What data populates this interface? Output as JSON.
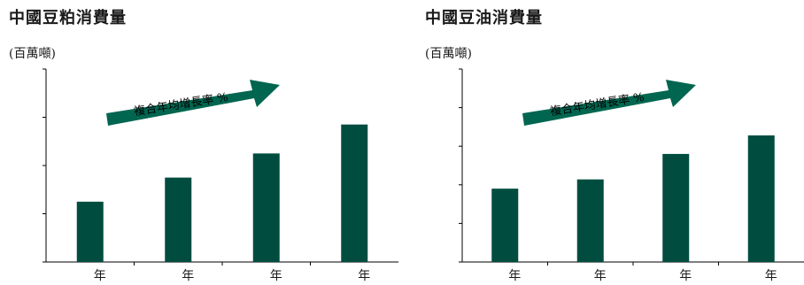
{
  "chart_data": [
    {
      "type": "bar",
      "title": "中國豆粕消費量",
      "unit_label": "(百萬噸)",
      "categories": [
        "年",
        "年",
        "年",
        "年"
      ],
      "values": [
        12.5,
        17.5,
        22.5,
        28.5
      ],
      "ylim": [
        0,
        40
      ],
      "y_ticks": [
        0,
        10,
        20,
        30,
        40
      ],
      "annotation": "複合年均增長率 %",
      "bar_color": "#004d40",
      "arrow_color": "#006650",
      "grid": false,
      "legend": "none"
    },
    {
      "type": "bar",
      "title": "中國豆油消費量",
      "unit_label": "(百萬噸)",
      "categories": [
        "年",
        "年",
        "年",
        "年"
      ],
      "values": [
        9.5,
        10.7,
        14.0,
        16.4
      ],
      "ylim": [
        0,
        25
      ],
      "y_ticks": [
        0,
        5,
        10,
        15,
        20,
        25
      ],
      "annotation": "複合年均增長率 %",
      "bar_color": "#004d40",
      "arrow_color": "#006650",
      "grid": false,
      "legend": "none"
    }
  ]
}
